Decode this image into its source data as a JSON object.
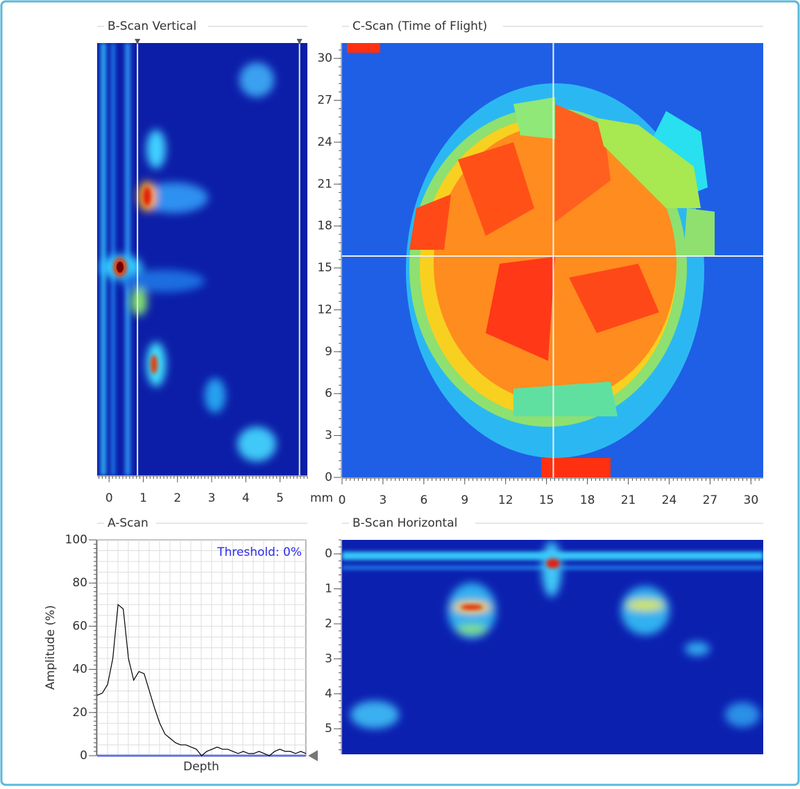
{
  "panels": {
    "bscan_vertical": {
      "title": "B-Scan Vertical",
      "xlim": [
        -0.35,
        5.8
      ],
      "xticks": [
        0,
        1,
        2,
        3,
        4,
        5
      ],
      "unit": "mm",
      "cursors": [
        0.83,
        5.57
      ]
    },
    "cscan": {
      "title": "C-Scan (Time of Flight)",
      "xlim": [
        0,
        30.9
      ],
      "ylim": [
        0,
        31.1
      ],
      "xticks": [
        0,
        3,
        6,
        9,
        12,
        15,
        18,
        21,
        24,
        27,
        30
      ],
      "yticks": [
        0,
        3,
        6,
        9,
        12,
        15,
        18,
        21,
        24,
        27,
        30
      ],
      "crosshair": {
        "x": 15.5,
        "y": 15.85
      }
    },
    "ascan": {
      "title": "A-Scan",
      "ylabel": "Amplitude (%)",
      "xlabel": "Depth",
      "annotation": "Threshold: 0%",
      "ylim": [
        0,
        100
      ],
      "yticks": [
        0,
        20,
        40,
        60,
        80,
        100
      ],
      "color": "#000000",
      "values": [
        28,
        29,
        33,
        45,
        70,
        68,
        45,
        35,
        39,
        38,
        30,
        22,
        15,
        10,
        8,
        6,
        5,
        5,
        4,
        3,
        0,
        2,
        3,
        4,
        3,
        3,
        2,
        1,
        2,
        1,
        1,
        2,
        1,
        0,
        2,
        3,
        2,
        2,
        1,
        2,
        1
      ]
    },
    "bscan_horizontal": {
      "title": "B-Scan Horizontal",
      "ylim": [
        -0.4,
        5.73
      ],
      "yticks": [
        0,
        1,
        2,
        3,
        4,
        5
      ]
    }
  }
}
